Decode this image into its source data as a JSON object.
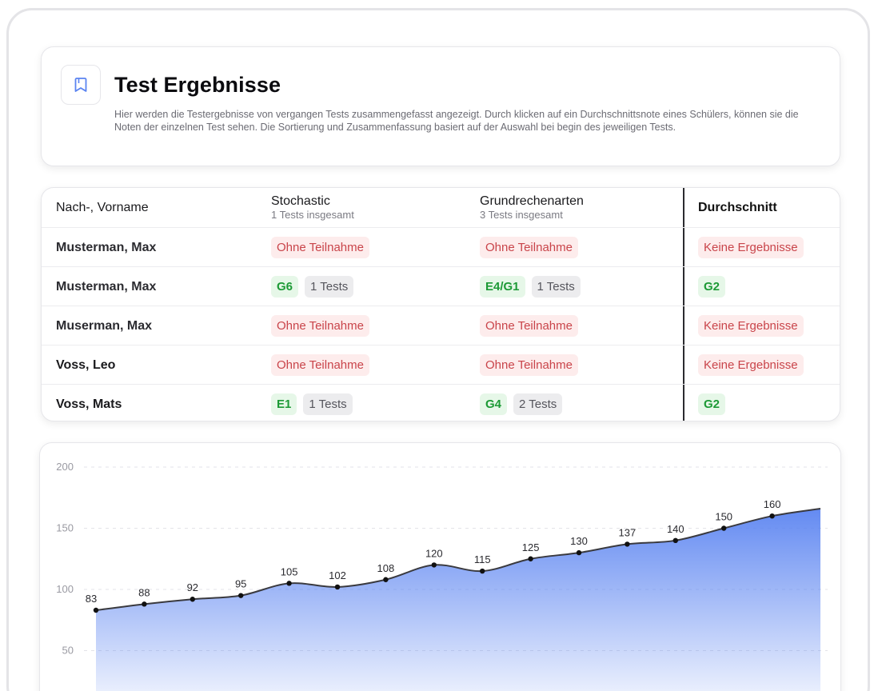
{
  "header": {
    "title": "Test Ergebnisse",
    "description": "Hier werden die Testergebnisse von vergangen Tests zusammengefasst angezeigt. Durch klicken auf ein Durchschnittsnote eines Schülers, können sie die Noten der einzelnen Test sehen. Die Sortierung und Zusammenfassung basiert auf der Auswahl bei begin des jeweiligen Tests.",
    "icon": "bookmark-icon"
  },
  "table": {
    "columns": {
      "name": "Nach-, Vorname",
      "stochastic": {
        "title": "Stochastic",
        "subtitle": "1 Tests insgesamt"
      },
      "grundrechenarten": {
        "title": "Grundrechenarten",
        "subtitle": "3 Tests insgesamt"
      },
      "average": "Durchschnitt"
    },
    "rows": [
      {
        "name": "Musterman, Max",
        "stoch_badge": "Ohne Teilnahme",
        "grund_badge": "Ohne Teilnahme",
        "avg": "Keine Ergebnisse"
      },
      {
        "name": "Musterman, Max",
        "stoch_badge": "G6",
        "stoch_count": "1 Tests",
        "grund_badge": "E4/G1",
        "grund_count": "1 Tests",
        "avg": "G2"
      },
      {
        "name": "Muserman, Max",
        "stoch_badge": "Ohne Teilnahme",
        "grund_badge": "Ohne Teilnahme",
        "avg": "Keine Ergebnisse"
      },
      {
        "name": "Voss, Leo",
        "stoch_badge": "Ohne Teilnahme",
        "grund_badge": "Ohne Teilnahme",
        "avg": "Keine Ergebnisse"
      },
      {
        "name": "Voss, Mats",
        "stoch_badge": "E1",
        "stoch_count": "1 Tests",
        "grund_badge": "G4",
        "grund_count": "2 Tests",
        "avg": "G2"
      }
    ]
  },
  "colors": {
    "accent_blue": "#5b84f1",
    "red_text": "#c9444a",
    "red_bg": "#fdecec",
    "green_text": "#1d9a36",
    "green_bg": "#e6f7e8"
  },
  "chart_data": {
    "type": "area",
    "y_ticks": [
      50,
      100,
      150,
      200
    ],
    "ylim": [
      0,
      200
    ],
    "grid": true,
    "values": [
      83,
      88,
      92,
      95,
      105,
      102,
      108,
      120,
      115,
      125,
      130,
      137,
      140,
      150,
      160,
      166
    ],
    "value_labels": [
      "83",
      "88",
      "92",
      "95",
      "105",
      "102",
      "108",
      "120",
      "115",
      "125",
      "130",
      "137",
      "140",
      "150",
      "160",
      ""
    ]
  }
}
